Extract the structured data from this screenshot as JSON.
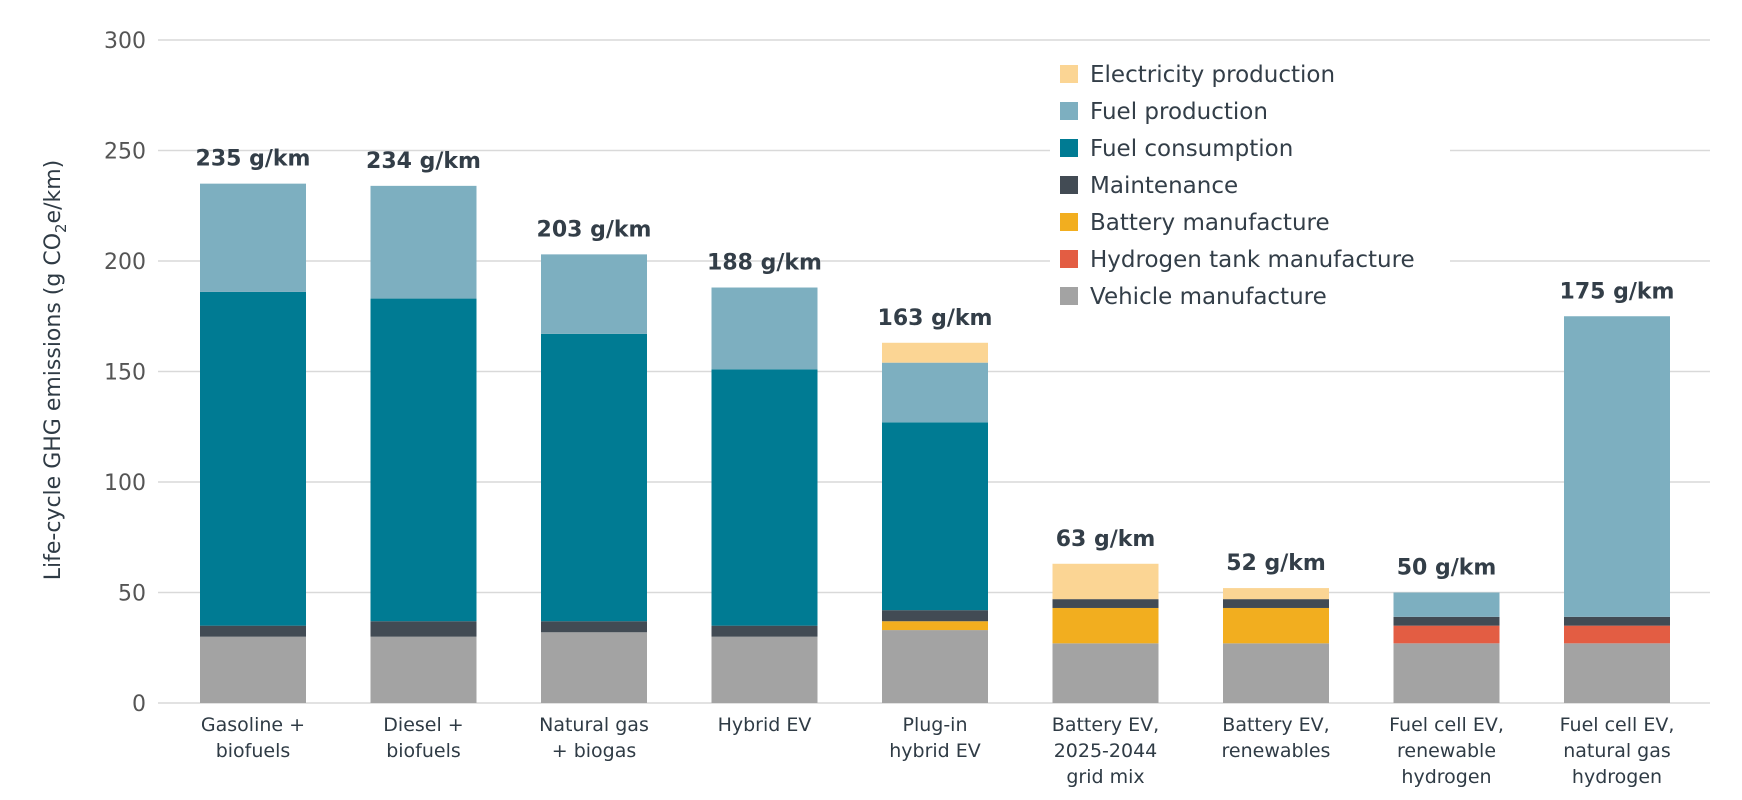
{
  "chart_data": {
    "type": "bar",
    "stacked": true,
    "ylabel": "Life-cycle GHG emissions (g CO2e/km)",
    "ylim": [
      0,
      300
    ],
    "yticks": [
      0,
      50,
      100,
      150,
      200,
      250,
      300
    ],
    "grid": true,
    "legend_position": "top-right",
    "categories": [
      [
        "Gasoline +",
        "biofuels"
      ],
      [
        "Diesel +",
        "biofuels"
      ],
      [
        "Natural gas",
        "+ biogas"
      ],
      [
        "Hybrid EV"
      ],
      [
        "Plug-in",
        "hybrid EV"
      ],
      [
        "Battery EV,",
        "2025-2044",
        "grid mix"
      ],
      [
        "Battery EV,",
        "renewables"
      ],
      [
        "Fuel cell EV,",
        "renewable",
        "hydrogen"
      ],
      [
        "Fuel cell EV,",
        "natural gas",
        "hydrogen"
      ]
    ],
    "totals": [
      "235 g/km",
      "234 g/km",
      "203 g/km",
      "188 g/km",
      "163 g/km",
      "63 g/km",
      "52 g/km",
      "50 g/km",
      "175 g/km"
    ],
    "series": [
      {
        "name": "Vehicle manufacture",
        "color": "#a3a3a3",
        "values": [
          30,
          30,
          32,
          30,
          33,
          27,
          27,
          27,
          27
        ]
      },
      {
        "name": "Hydrogen tank manufacture",
        "color": "#e35d43",
        "values": [
          0,
          0,
          0,
          0,
          0,
          0,
          0,
          8,
          8
        ]
      },
      {
        "name": "Battery manufacture",
        "color": "#f2ae1f",
        "values": [
          0,
          0,
          0,
          0,
          4,
          16,
          16,
          0,
          0
        ]
      },
      {
        "name": "Maintenance",
        "color": "#424b54",
        "values": [
          5,
          7,
          5,
          5,
          5,
          4,
          4,
          4,
          4
        ]
      },
      {
        "name": "Fuel consumption",
        "color": "#007b93",
        "values": [
          151,
          146,
          130,
          116,
          85,
          0,
          0,
          0,
          0
        ]
      },
      {
        "name": "Fuel production",
        "color": "#7dafc0",
        "values": [
          49,
          51,
          36,
          37,
          27,
          0,
          0,
          11,
          136
        ]
      },
      {
        "name": "Electricity production",
        "color": "#fbd594",
        "values": [
          0,
          0,
          0,
          0,
          9,
          16,
          5,
          0,
          0
        ]
      }
    ],
    "legend_order": [
      "Electricity production",
      "Fuel production",
      "Fuel consumption",
      "Maintenance",
      "Battery manufacture",
      "Hydrogen tank manufacture",
      "Vehicle manufacture"
    ]
  }
}
